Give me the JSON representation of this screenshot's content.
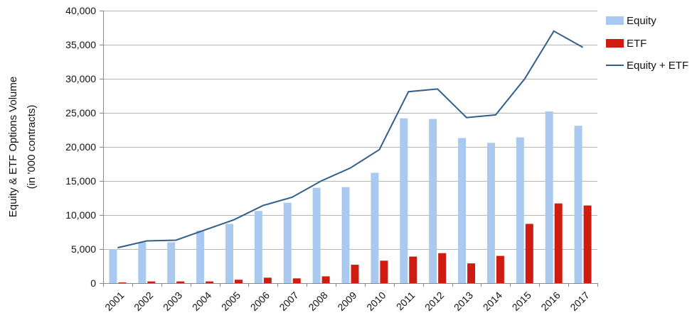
{
  "chart_data": {
    "type": "bar",
    "title": "",
    "ylabel_lines": [
      "Equity & ETF Options Volume",
      "(in '000 contracts)"
    ],
    "xlabel": "",
    "ylim": [
      0,
      40000
    ],
    "yticks": [
      0,
      5000,
      10000,
      15000,
      20000,
      25000,
      30000,
      35000,
      40000
    ],
    "ytick_labels": [
      "0",
      "5,000",
      "10,000",
      "15,000",
      "20,000",
      "25,000",
      "30,000",
      "35,000",
      "40,000"
    ],
    "grid": true,
    "legend_position": "top-right",
    "categories": [
      "2001",
      "2002",
      "2003",
      "2004",
      "2005",
      "2006",
      "2007",
      "2008",
      "2009",
      "2010",
      "2011",
      "2012",
      "2013",
      "2014",
      "2015",
      "2016",
      "2017"
    ],
    "series": [
      {
        "name": "Equity",
        "type": "bar",
        "color": "#a9c9ee",
        "values": [
          5000,
          6000,
          6000,
          7700,
          8700,
          10600,
          11800,
          14000,
          14100,
          16200,
          24200,
          24100,
          21300,
          20600,
          21400,
          25200,
          23100
        ]
      },
      {
        "name": "ETF",
        "type": "bar",
        "color": "#d01c10",
        "values": [
          100,
          250,
          250,
          250,
          500,
          800,
          700,
          1000,
          2700,
          3300,
          3900,
          4400,
          2900,
          4000,
          8700,
          11700,
          11400
        ]
      },
      {
        "name": "Equity + ETF",
        "type": "line",
        "color": "#2f5e8c",
        "values": [
          5200,
          6200,
          6300,
          7800,
          9300,
          11400,
          12600,
          15000,
          16900,
          19600,
          28100,
          28500,
          24300,
          24700,
          30000,
          37000,
          34600
        ]
      }
    ]
  }
}
